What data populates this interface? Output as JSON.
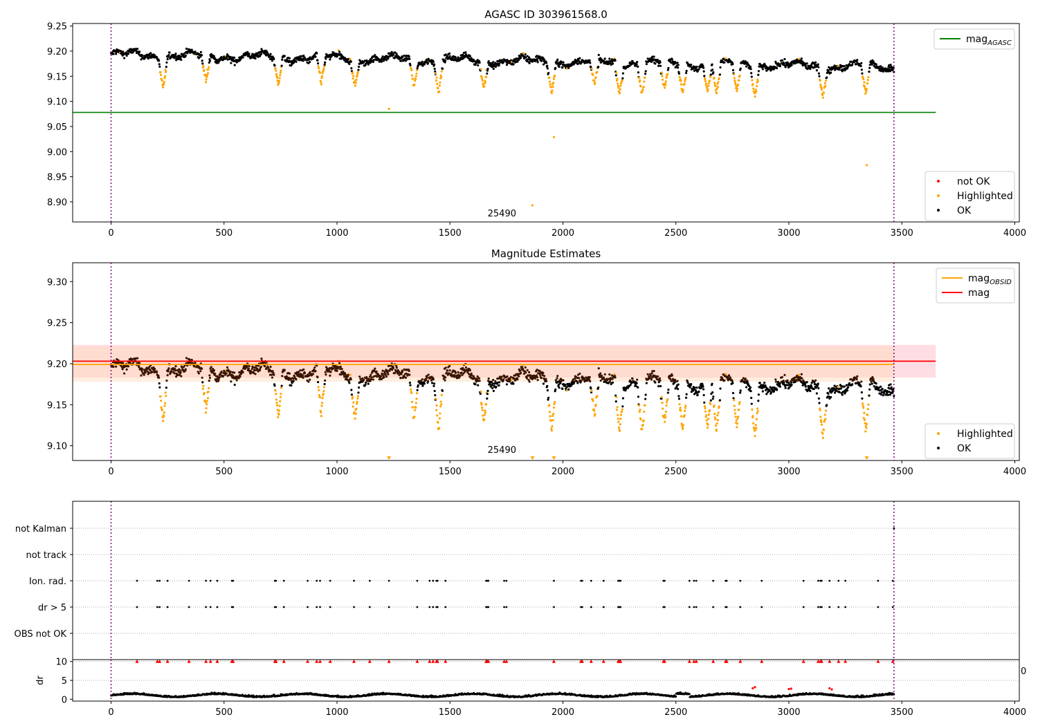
{
  "colors": {
    "ok": "#000000",
    "highlighted": "#ffa500",
    "not_ok": "#ff0000",
    "mag_agasc": "#008000",
    "mag_obsid": "#ffa500",
    "mag": "#ff0000",
    "obs_marker": "#800080",
    "band_mag": "#ffb6c1",
    "band_obsid": "#ffdab9"
  },
  "chart_data": [
    {
      "type": "scatter",
      "title": "AGASC ID 303961568.0",
      "xlim": [
        -170,
        4020
      ],
      "ylim": [
        8.86,
        9.255
      ],
      "x_ticks": [
        0,
        500,
        1000,
        1500,
        2000,
        2500,
        3000,
        3500,
        4000
      ],
      "y_ticks": [
        "8.90",
        "8.95",
        "9.00",
        "9.05",
        "9.10",
        "9.15",
        "9.20",
        "9.25"
      ],
      "hlines": [
        {
          "name": "mag_AGASC",
          "y": 9.078,
          "x_from": -170,
          "x_to": 3650,
          "color": "mag_agasc"
        }
      ],
      "obs_boundaries": [
        0,
        3465
      ],
      "obsid_label": {
        "text": "25490",
        "x": 1730,
        "y": 8.878
      },
      "ok_points": {
        "x_range": [
          0,
          3465
        ],
        "count": 1900
      },
      "highlighted_points": {
        "count": 420,
        "outliers": [
          {
            "x": 1230,
            "y": 9.085
          },
          {
            "x": 1960,
            "y": 9.029
          },
          {
            "x": 1865,
            "y": 8.893
          },
          {
            "x": 3345,
            "y": 8.973
          }
        ]
      },
      "legends": [
        {
          "position": "top-right",
          "entries": [
            {
              "kind": "line",
              "color": "mag_agasc",
              "label": "mag",
              "sub": "AGASC"
            }
          ]
        },
        {
          "position": "lower-right",
          "entries": [
            {
              "kind": "dot",
              "color": "not_ok",
              "label": "not OK"
            },
            {
              "kind": "dot",
              "color": "highlighted",
              "label": "Highlighted"
            },
            {
              "kind": "dot",
              "color": "ok",
              "label": "OK"
            }
          ]
        }
      ]
    },
    {
      "type": "scatter",
      "title": "Magnitude Estimates",
      "xlim": [
        -170,
        4020
      ],
      "ylim": [
        9.082,
        9.323
      ],
      "x_ticks": [
        0,
        500,
        1000,
        1500,
        2000,
        2500,
        3000,
        3500,
        4000
      ],
      "y_ticks": [
        "9.10",
        "9.15",
        "9.20",
        "9.25",
        "9.30"
      ],
      "bands": [
        {
          "name": "mag band",
          "y_from": 9.183,
          "y_to": 9.223,
          "x_from": -170,
          "x_to": 3650,
          "color": "band_mag"
        },
        {
          "name": "mag_OBSID band",
          "y_from": 9.178,
          "y_to": 9.221,
          "x_from": -170,
          "x_to": 3465,
          "color": "band_obsid"
        }
      ],
      "hlines": [
        {
          "name": "mag_OBSID",
          "y": 9.199,
          "x_from": -170,
          "x_to": 3465,
          "color": "mag_obsid"
        },
        {
          "name": "mag",
          "y": 9.203,
          "x_from": -170,
          "x_to": 3650,
          "color": "mag"
        }
      ],
      "obs_boundaries": [
        0,
        3465
      ],
      "obsid_label": {
        "text": "25490",
        "x": 1730,
        "y": 9.0955
      },
      "legends": [
        {
          "position": "top-right",
          "entries": [
            {
              "kind": "line",
              "color": "mag_obsid",
              "label": "mag",
              "sub": "OBSID"
            },
            {
              "kind": "line",
              "color": "mag",
              "label": "mag"
            }
          ]
        },
        {
          "position": "lower-right",
          "entries": [
            {
              "kind": "dot",
              "color": "highlighted",
              "label": "Highlighted"
            },
            {
              "kind": "dot",
              "color": "ok",
              "label": "OK"
            }
          ]
        }
      ]
    },
    {
      "type": "scatter",
      "title": "",
      "xlim": [
        -170,
        4020
      ],
      "categories": [
        "not Kalman",
        "not track",
        "Ion. rad.",
        "dr > 5",
        "OBS not OK"
      ],
      "obs_boundaries": [
        0,
        3465
      ],
      "flag_x": [
        115,
        205,
        215,
        250,
        345,
        420,
        440,
        470,
        535,
        540,
        725,
        730,
        765,
        870,
        910,
        925,
        970,
        1075,
        1145,
        1230,
        1355,
        1410,
        1425,
        1440,
        1445,
        1480,
        1660,
        1665,
        1670,
        1740,
        1750,
        1960,
        2080,
        2085,
        2125,
        2180,
        2245,
        2250,
        2255,
        2445,
        2450,
        2560,
        2580,
        2590,
        2665,
        2720,
        2725,
        2785,
        2880,
        3065,
        3130,
        3140,
        3145,
        3180,
        3220,
        3250,
        3395,
        3460
      ],
      "not_kalman_x": [
        3465
      ]
    },
    {
      "type": "scatter",
      "title": "",
      "ylabel": "dr",
      "xlim": [
        -170,
        4020
      ],
      "ylim": [
        -0.5,
        10.5
      ],
      "x_ticks": [
        0,
        500,
        1000,
        1500,
        2000,
        2500,
        3000,
        3500,
        4000
      ],
      "y_ticks": [
        "0",
        "5",
        "10"
      ],
      "clipped_marker_y": 10,
      "clipped_x": [
        115,
        205,
        215,
        250,
        345,
        420,
        440,
        470,
        535,
        540,
        725,
        730,
        765,
        870,
        910,
        925,
        970,
        1075,
        1145,
        1230,
        1355,
        1410,
        1425,
        1440,
        1445,
        1480,
        1660,
        1665,
        1670,
        1740,
        1750,
        1960,
        2080,
        2085,
        2125,
        2180,
        2245,
        2250,
        2255,
        2445,
        2450,
        2560,
        2580,
        2590,
        2665,
        2720,
        2725,
        2785,
        2880,
        3065,
        3130,
        3140,
        3145,
        3180,
        3220,
        3250,
        3395,
        3460
      ],
      "red_points": [
        {
          "x": 2840,
          "y": 2.9
        },
        {
          "x": 2850,
          "y": 3.2
        },
        {
          "x": 3000,
          "y": 2.7
        },
        {
          "x": 3010,
          "y": 2.8
        },
        {
          "x": 3180,
          "y": 2.9
        },
        {
          "x": 3190,
          "y": 2.6
        }
      ],
      "obs_boundaries": [
        0,
        3465
      ],
      "edge_text": "0"
    }
  ]
}
